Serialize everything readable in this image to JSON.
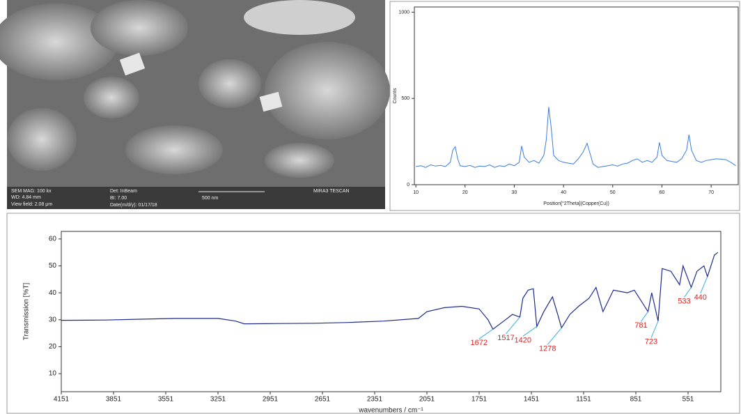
{
  "sem": {
    "labels": [
      "SEM MAG: 100 kx",
      "WD: 4.84 mm",
      "View field: 2.08 μm",
      "Det: InBeam",
      "BI: 7.00",
      "Date(m/d/y): 01/17/18",
      "500 nm",
      "MIRA3 TESCAN"
    ]
  },
  "chart_data": [
    {
      "type": "line",
      "ylabel": "Counts",
      "xlabel": "Position[°2Theta](Copper(Cu))",
      "xlim": [
        9.7,
        75.5
      ],
      "ylim": [
        0,
        1030
      ],
      "xticks": [
        10,
        20,
        30,
        40,
        50,
        60,
        70
      ],
      "yticks": [
        0,
        500,
        1000
      ],
      "x": [
        10,
        11,
        12,
        13,
        14,
        15,
        16,
        17,
        17.5,
        18,
        18.5,
        19,
        20,
        21,
        22,
        23,
        24,
        25,
        26,
        27,
        28,
        29,
        30,
        31,
        31.5,
        32,
        33,
        34,
        35,
        36,
        36.5,
        37,
        37.5,
        38,
        39,
        40,
        41,
        42,
        43,
        44,
        44.8,
        45.5,
        46,
        47,
        48,
        49,
        50,
        51,
        52,
        53,
        54,
        55,
        56,
        57,
        58,
        59,
        59.5,
        60,
        61,
        62,
        63,
        64,
        65,
        65.5,
        66,
        67,
        68,
        69,
        70,
        71,
        72,
        73,
        74,
        75
      ],
      "series": [
        {
          "color": "#3a7be0",
          "values": [
            105,
            110,
            100,
            115,
            108,
            112,
            105,
            130,
            200,
            220,
            150,
            110,
            105,
            112,
            100,
            108,
            105,
            115,
            100,
            110,
            105,
            120,
            110,
            130,
            225,
            160,
            130,
            140,
            125,
            170,
            260,
            450,
            330,
            170,
            140,
            130,
            125,
            120,
            150,
            190,
            240,
            170,
            120,
            100,
            105,
            110,
            115,
            108,
            120,
            125,
            140,
            150,
            130,
            140,
            130,
            160,
            245,
            170,
            140,
            135,
            130,
            150,
            200,
            290,
            200,
            140,
            130,
            140,
            145,
            150,
            148,
            145,
            130,
            110
          ]
        }
      ]
    },
    {
      "type": "line",
      "ylabel": "Transmission [%T]",
      "xlabel": "wavenumbers / cm⁻¹",
      "xlim": [
        4151,
        363
      ],
      "ylim": [
        3.3,
        62.8
      ],
      "xticks": [
        4151,
        3851,
        3551,
        3251,
        2951,
        2651,
        2351,
        2051,
        1751,
        1451,
        1151,
        851,
        551
      ],
      "yticks": [
        10,
        20,
        30,
        40,
        50,
        60
      ],
      "x": [
        4151,
        3900,
        3700,
        3500,
        3250,
        3150,
        3100,
        2900,
        2700,
        2500,
        2300,
        2100,
        2051,
        1950,
        1850,
        1751,
        1700,
        1672,
        1600,
        1560,
        1517,
        1500,
        1470,
        1440,
        1420,
        1380,
        1330,
        1300,
        1278,
        1230,
        1180,
        1120,
        1080,
        1040,
        980,
        900,
        860,
        781,
        760,
        723,
        700,
        650,
        600,
        580,
        533,
        500,
        460,
        440,
        400,
        380
      ],
      "series": [
        {
          "color": "#1c2a8c",
          "values": [
            29.8,
            29.9,
            30.2,
            30.5,
            30.5,
            29.5,
            28.5,
            28.6,
            28.7,
            29.0,
            29.5,
            30.5,
            33,
            34.5,
            35,
            34,
            30,
            26.5,
            30,
            32,
            31,
            38,
            41,
            41.5,
            27.5,
            33,
            38.5,
            32,
            27,
            32,
            35,
            38,
            42,
            33,
            41,
            40,
            41,
            33,
            40,
            29.5,
            49,
            48,
            43,
            50,
            42,
            48,
            50,
            46,
            54,
            55
          ]
        }
      ],
      "peaks": [
        1672,
        1517,
        1420,
        1278,
        781,
        723,
        533,
        440
      ],
      "peak_values": [
        26.5,
        31,
        27.5,
        27,
        33,
        29.5,
        42,
        46
      ]
    }
  ]
}
